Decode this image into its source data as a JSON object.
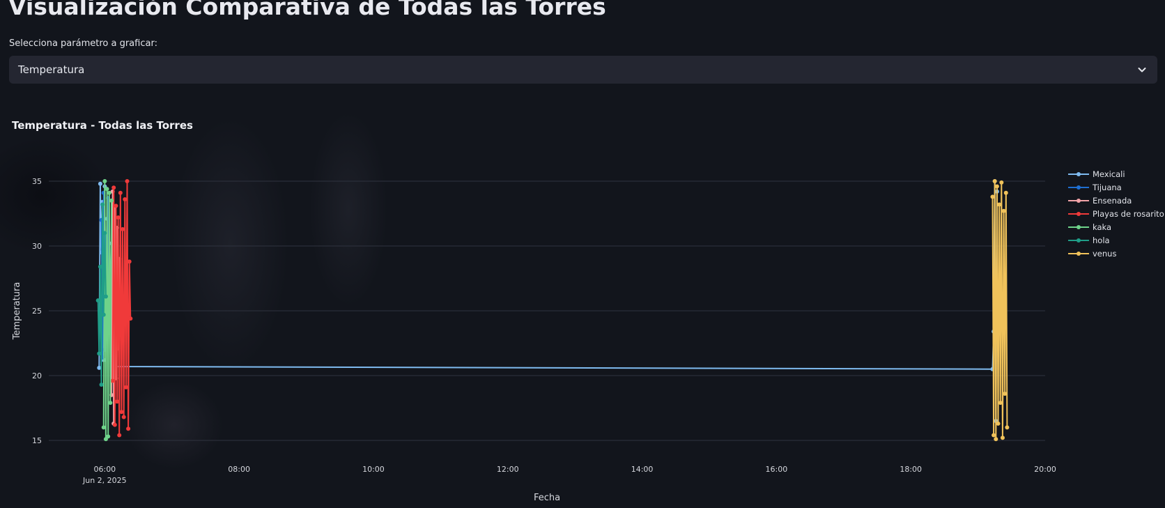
{
  "page": {
    "title": "Visualización Comparativa de Todas las Torres",
    "select_label": "Selecciona parámetro a graficar:",
    "select_value": "Temperatura"
  },
  "chart_data": {
    "type": "line",
    "title": "Temperatura - Todas las Torres",
    "xlabel": "Fecha",
    "ylabel": "Temperatura",
    "date_label": "Jun 2, 2025",
    "x_ticks": [
      "06:00",
      "08:00",
      "10:00",
      "12:00",
      "14:00",
      "16:00",
      "18:00",
      "20:00"
    ],
    "y_ticks": [
      15,
      20,
      25,
      30,
      35
    ],
    "xlim": [
      "05:10",
      "20:00"
    ],
    "ylim": [
      15,
      35
    ],
    "grid": true,
    "legend_position": "right",
    "series": [
      {
        "name": "Mexicali",
        "color": "#7fbbf0",
        "x": [
          "05:55",
          "05:56",
          "05:57",
          "05:58",
          "05:59",
          "06:00",
          "06:01",
          "06:02",
          "06:04",
          "06:06",
          "06:08",
          "06:10",
          "19:13",
          "19:14",
          "19:15",
          "19:16",
          "19:17"
        ],
        "y": [
          20.6,
          34.8,
          29.5,
          33.4,
          21.2,
          34.6,
          23.3,
          32.1,
          25.7,
          30.2,
          20.9,
          20.7,
          20.5,
          23.4,
          35.0,
          16.5,
          34.2
        ]
      },
      {
        "name": "Tijuana",
        "color": "#1f6fd1",
        "x": [
          "05:57",
          "05:58",
          "05:59",
          "06:00",
          "06:01",
          "06:02",
          "06:03"
        ],
        "y": [
          32.0,
          21.4,
          34.1,
          22.0,
          30.8,
          24.5,
          33.7
        ]
      },
      {
        "name": "Ensenada",
        "color": "#f2a3a8",
        "x": [
          "06:06",
          "06:07",
          "06:08",
          "06:09",
          "06:10",
          "06:11",
          "06:12",
          "06:13"
        ],
        "y": [
          18.5,
          34.2,
          16.3,
          33.0,
          19.8,
          31.4,
          22.1,
          29.0
        ]
      },
      {
        "name": "Playas de rosarito",
        "color": "#f03a3a",
        "x": [
          "06:07",
          "06:08",
          "06:09",
          "06:10",
          "06:11",
          "06:12",
          "06:13",
          "06:14",
          "06:15",
          "06:16",
          "06:17",
          "06:18",
          "06:19",
          "06:20",
          "06:21",
          "06:22",
          "06:23"
        ],
        "y": [
          19.6,
          34.5,
          16.2,
          33.1,
          18.0,
          32.2,
          15.4,
          34.1,
          17.2,
          31.3,
          16.8,
          33.6,
          19.1,
          35.0,
          15.9,
          28.8,
          24.4
        ]
      },
      {
        "name": "kaka",
        "color": "#6fd38a",
        "x": [
          "05:59",
          "06:00",
          "06:01",
          "06:02",
          "06:03",
          "06:04",
          "06:05",
          "06:06"
        ],
        "y": [
          16.0,
          35.0,
          15.1,
          34.4,
          15.3,
          34.1,
          17.9,
          33.5
        ]
      },
      {
        "name": "hola",
        "color": "#1f9e88",
        "x": [
          "05:54",
          "05:55",
          "05:56",
          "05:57",
          "05:58",
          "05:59",
          "06:00",
          "06:01"
        ],
        "y": [
          25.8,
          21.7,
          28.4,
          19.3,
          33.2,
          24.7,
          31.0,
          26.1
        ]
      },
      {
        "name": "venus",
        "color": "#f0c25a",
        "x": [
          "19:13",
          "19:14",
          "19:15",
          "19:16",
          "19:17",
          "19:18",
          "19:19",
          "19:20",
          "19:21",
          "19:22",
          "19:23",
          "19:24",
          "19:25",
          "19:26"
        ],
        "y": [
          33.8,
          15.4,
          35.0,
          15.1,
          34.6,
          16.3,
          33.2,
          17.9,
          34.9,
          15.2,
          32.7,
          18.6,
          34.1,
          16.0
        ]
      }
    ]
  }
}
